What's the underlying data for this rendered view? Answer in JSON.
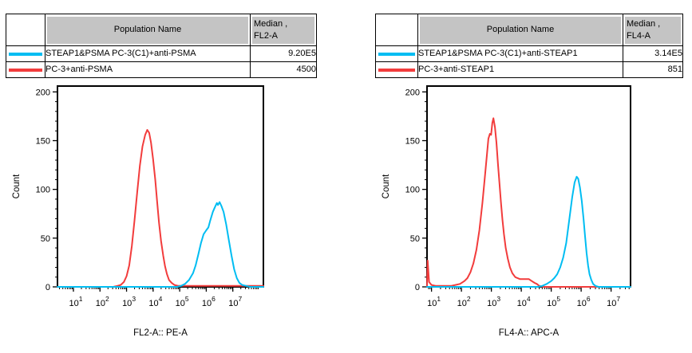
{
  "colors": {
    "cyan": "#00BDF2",
    "red": "#F23C3C",
    "table_header_bg": "#C4C4C4",
    "axis": "#000000"
  },
  "tables": [
    {
      "population_header": "Population Name",
      "median_header_line1": "Median ,",
      "median_header_line2": "FL2-A",
      "rows": [
        {
          "swatch_color": "#00BDF2",
          "population": "STEAP1&PSMA PC-3(C1)+anti-PSMA",
          "median": "9.20E5"
        },
        {
          "swatch_color": "#F23C3C",
          "population": "PC-3+anti-PSMA",
          "median": "4500"
        }
      ]
    },
    {
      "population_header": "Population Name",
      "median_header_line1": "Median ,",
      "median_header_line2": "FL4-A",
      "rows": [
        {
          "swatch_color": "#00BDF2",
          "population": "STEAP1&PSMA PC-3(C1)+anti-STEAP1",
          "median": "3.14E5"
        },
        {
          "swatch_color": "#F23C3C",
          "population": "PC-3+anti-STEAP1",
          "median": "851"
        }
      ]
    }
  ],
  "chart_data": [
    {
      "type": "line",
      "title": "",
      "xlabel": "FL2-A:: PE-A",
      "ylabel": "Count",
      "xscale": "log10",
      "xlim_log": [
        0.4,
        8.15
      ],
      "ylim": [
        0,
        206
      ],
      "yticks": [
        0,
        50,
        100,
        150,
        200
      ],
      "ytick_minor_step": 10,
      "xtick_decades": [
        1,
        2,
        3,
        4,
        5,
        6,
        7
      ],
      "grid": false,
      "legend": "none",
      "series": [
        {
          "name": "PC-3+anti-PSMA",
          "color": "#F23C3C",
          "median": "4500",
          "points": [
            [
              0.4,
              0
            ],
            [
              2.5,
              0
            ],
            [
              2.65,
              1
            ],
            [
              2.78,
              2
            ],
            [
              2.9,
              5
            ],
            [
              3.0,
              11
            ],
            [
              3.1,
              22
            ],
            [
              3.2,
              42
            ],
            [
              3.3,
              68
            ],
            [
              3.4,
              97
            ],
            [
              3.5,
              124
            ],
            [
              3.6,
              144
            ],
            [
              3.7,
              156
            ],
            [
              3.78,
              161
            ],
            [
              3.85,
              158
            ],
            [
              3.92,
              148
            ],
            [
              4.0,
              131
            ],
            [
              4.08,
              110
            ],
            [
              4.15,
              88
            ],
            [
              4.22,
              66
            ],
            [
              4.3,
              47
            ],
            [
              4.38,
              32
            ],
            [
              4.45,
              21
            ],
            [
              4.52,
              13
            ],
            [
              4.6,
              7
            ],
            [
              4.7,
              4
            ],
            [
              4.8,
              2
            ],
            [
              4.95,
              1
            ],
            [
              5.5,
              1
            ],
            [
              6.5,
              1
            ],
            [
              8.15,
              1
            ]
          ]
        },
        {
          "name": "STEAP1&PSMA PC-3(C1)+anti-PSMA",
          "color": "#00BDF2",
          "median": "9.20E5",
          "points": [
            [
              0.4,
              0
            ],
            [
              4.9,
              0
            ],
            [
              5.05,
              1
            ],
            [
              5.2,
              3
            ],
            [
              5.35,
              7
            ],
            [
              5.5,
              14
            ],
            [
              5.6,
              22
            ],
            [
              5.7,
              33
            ],
            [
              5.8,
              45
            ],
            [
              5.9,
              54
            ],
            [
              6.0,
              58
            ],
            [
              6.08,
              61
            ],
            [
              6.15,
              68
            ],
            [
              6.25,
              77
            ],
            [
              6.33,
              82
            ],
            [
              6.4,
              86
            ],
            [
              6.44,
              84
            ],
            [
              6.5,
              87
            ],
            [
              6.57,
              83
            ],
            [
              6.65,
              77
            ],
            [
              6.75,
              64
            ],
            [
              6.85,
              48
            ],
            [
              6.95,
              32
            ],
            [
              7.05,
              18
            ],
            [
              7.15,
              9
            ],
            [
              7.25,
              4
            ],
            [
              7.35,
              2
            ],
            [
              7.5,
              1
            ],
            [
              7.65,
              0
            ],
            [
              8.15,
              0
            ]
          ]
        }
      ]
    },
    {
      "type": "line",
      "title": "",
      "xlabel": "FL4-A:: APC-A",
      "ylabel": "Count",
      "xscale": "log10",
      "xlim_log": [
        0.85,
        7.65
      ],
      "ylim": [
        0,
        206
      ],
      "yticks": [
        0,
        50,
        100,
        150,
        200
      ],
      "ytick_minor_step": 10,
      "xtick_decades": [
        1,
        2,
        3,
        4,
        5,
        6,
        7
      ],
      "grid": false,
      "legend": "none",
      "series": [
        {
          "name": "PC-3+anti-STEAP1",
          "color": "#F23C3C",
          "median": "851",
          "points": [
            [
              0.85,
              0
            ],
            [
              0.87,
              27
            ],
            [
              0.92,
              5
            ],
            [
              1.0,
              2
            ],
            [
              1.15,
              1
            ],
            [
              1.45,
              1
            ],
            [
              1.65,
              1
            ],
            [
              1.8,
              2
            ],
            [
              1.95,
              3
            ],
            [
              2.1,
              6
            ],
            [
              2.2,
              9
            ],
            [
              2.3,
              15
            ],
            [
              2.4,
              24
            ],
            [
              2.5,
              38
            ],
            [
              2.6,
              58
            ],
            [
              2.7,
              86
            ],
            [
              2.78,
              112
            ],
            [
              2.85,
              135
            ],
            [
              2.9,
              152
            ],
            [
              2.95,
              157
            ],
            [
              2.99,
              156
            ],
            [
              3.03,
              168
            ],
            [
              3.07,
              173
            ],
            [
              3.12,
              164
            ],
            [
              3.17,
              148
            ],
            [
              3.22,
              126
            ],
            [
              3.27,
              106
            ],
            [
              3.32,
              87
            ],
            [
              3.37,
              69
            ],
            [
              3.42,
              54
            ],
            [
              3.48,
              40
            ],
            [
              3.55,
              29
            ],
            [
              3.62,
              20
            ],
            [
              3.7,
              14
            ],
            [
              3.8,
              10
            ],
            [
              3.95,
              8
            ],
            [
              4.1,
              8
            ],
            [
              4.25,
              8
            ],
            [
              4.35,
              6
            ],
            [
              4.45,
              4
            ],
            [
              4.52,
              3
            ],
            [
              4.6,
              1
            ],
            [
              4.75,
              0
            ],
            [
              7.65,
              0
            ]
          ]
        },
        {
          "name": "STEAP1&PSMA PC-3(C1)+anti-STEAP1",
          "color": "#00BDF2",
          "median": "3.14E5",
          "points": [
            [
              0.85,
              0
            ],
            [
              4.55,
              0
            ],
            [
              4.7,
              1
            ],
            [
              4.85,
              3
            ],
            [
              5.0,
              6
            ],
            [
              5.1,
              9
            ],
            [
              5.2,
              13
            ],
            [
              5.3,
              20
            ],
            [
              5.4,
              30
            ],
            [
              5.5,
              45
            ],
            [
              5.6,
              68
            ],
            [
              5.7,
              92
            ],
            [
              5.78,
              107
            ],
            [
              5.85,
              113
            ],
            [
              5.9,
              111
            ],
            [
              5.96,
              102
            ],
            [
              6.02,
              88
            ],
            [
              6.08,
              70
            ],
            [
              6.13,
              52
            ],
            [
              6.18,
              35
            ],
            [
              6.23,
              22
            ],
            [
              6.28,
              13
            ],
            [
              6.34,
              7
            ],
            [
              6.4,
              3
            ],
            [
              6.48,
              1
            ],
            [
              6.58,
              0
            ],
            [
              7.65,
              0
            ]
          ]
        }
      ]
    }
  ]
}
